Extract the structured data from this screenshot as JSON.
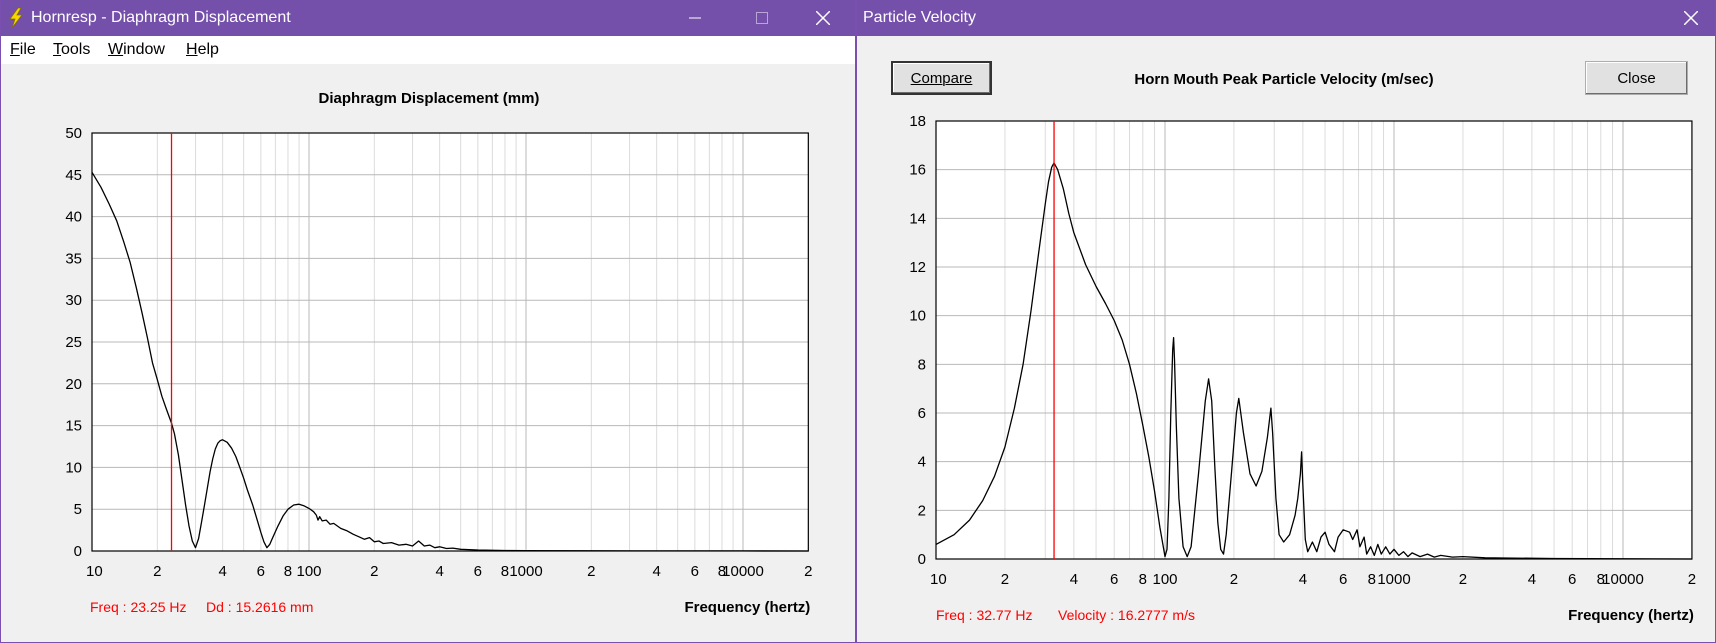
{
  "left_window": {
    "title": "Hornresp - Diaphragm Displacement",
    "menu": [
      {
        "label": "File",
        "mnemonic": "F",
        "rest": "ile"
      },
      {
        "label": "Tools",
        "mnemonic": "T",
        "rest": "ools"
      },
      {
        "label": "Window",
        "mnemonic": "W",
        "rest": "indow"
      },
      {
        "label": "Help",
        "mnemonic": "H",
        "rest": "elp"
      }
    ],
    "status": {
      "freq": "Freq : 23.25 Hz",
      "value": "Dd : 15.2616 mm"
    }
  },
  "right_window": {
    "title": "Particle Velocity",
    "compare_label": "Compare",
    "close_label": "Close",
    "status": {
      "freq": "Freq : 32.77 Hz",
      "value": "Velocity : 16.2777 m/s"
    }
  },
  "chart_data": [
    {
      "type": "line",
      "title": "Diaphragm Displacement (mm)",
      "xlabel": "Frequency (hertz)",
      "ylabel": "",
      "xscale": "log",
      "xlim": [
        10,
        20000
      ],
      "ylim": [
        0,
        50
      ],
      "yticks": [
        0,
        5,
        10,
        15,
        20,
        25,
        30,
        35,
        40,
        45,
        50
      ],
      "xtick_labels": [
        {
          "v": 10,
          "t": "10"
        },
        {
          "v": 20,
          "t": "2"
        },
        {
          "v": 40,
          "t": "4"
        },
        {
          "v": 60,
          "t": "6"
        },
        {
          "v": 80,
          "t": "8"
        },
        {
          "v": 100,
          "t": "100"
        },
        {
          "v": 200,
          "t": "2"
        },
        {
          "v": 400,
          "t": "4"
        },
        {
          "v": 600,
          "t": "6"
        },
        {
          "v": 800,
          "t": "8"
        },
        {
          "v": 1000,
          "t": "1000"
        },
        {
          "v": 2000,
          "t": "2"
        },
        {
          "v": 4000,
          "t": "4"
        },
        {
          "v": 6000,
          "t": "6"
        },
        {
          "v": 8000,
          "t": "8"
        },
        {
          "v": 10000,
          "t": "10000"
        },
        {
          "v": 20000,
          "t": "2"
        }
      ],
      "grid": true,
      "cursor_x": 23.25,
      "series": [
        {
          "name": "",
          "color": "#000000",
          "points": [
            [
              10,
              45.3
            ],
            [
              11,
              43.5
            ],
            [
              12,
              41.5
            ],
            [
              13,
              39.5
            ],
            [
              14,
              37
            ],
            [
              15,
              34.5
            ],
            [
              16,
              31.5
            ],
            [
              17,
              28.5
            ],
            [
              18,
              25.5
            ],
            [
              19,
              22.5
            ],
            [
              20,
              20.5
            ],
            [
              21,
              18.5
            ],
            [
              22,
              17
            ],
            [
              23.25,
              15.3
            ],
            [
              24,
              14
            ],
            [
              25,
              11.5
            ],
            [
              26,
              8.5
            ],
            [
              27,
              5.5
            ],
            [
              28,
              3
            ],
            [
              29,
              1.2
            ],
            [
              30,
              0.4
            ],
            [
              31,
              1.5
            ],
            [
              32,
              3.5
            ],
            [
              33,
              5.5
            ],
            [
              34,
              7.5
            ],
            [
              35,
              9.5
            ],
            [
              36,
              11
            ],
            [
              37,
              12.2
            ],
            [
              38,
              12.9
            ],
            [
              39,
              13.2
            ],
            [
              40,
              13.3
            ],
            [
              42,
              13.0
            ],
            [
              44,
              12.3
            ],
            [
              46,
              11.3
            ],
            [
              48,
              10
            ],
            [
              50,
              8.7
            ],
            [
              52,
              7.3
            ],
            [
              55,
              5.5
            ],
            [
              58,
              3.5
            ],
            [
              60,
              2.2
            ],
            [
              62,
              1.1
            ],
            [
              64,
              0.4
            ],
            [
              66,
              0.8
            ],
            [
              68,
              1.6
            ],
            [
              72,
              3
            ],
            [
              76,
              4.2
            ],
            [
              80,
              5.0
            ],
            [
              85,
              5.5
            ],
            [
              90,
              5.6
            ],
            [
              95,
              5.4
            ],
            [
              100,
              5.1
            ],
            [
              105,
              4.7
            ],
            [
              108,
              4.3
            ],
            [
              110,
              3.7
            ],
            [
              112,
              4.1
            ],
            [
              115,
              3.6
            ],
            [
              120,
              3.7
            ],
            [
              125,
              3.2
            ],
            [
              130,
              3.3
            ],
            [
              140,
              2.7
            ],
            [
              150,
              2.4
            ],
            [
              160,
              2.0
            ],
            [
              170,
              1.7
            ],
            [
              180,
              1.4
            ],
            [
              190,
              1.6
            ],
            [
              200,
              1.1
            ],
            [
              210,
              1.2
            ],
            [
              220,
              0.9
            ],
            [
              240,
              1.0
            ],
            [
              260,
              0.7
            ],
            [
              280,
              0.8
            ],
            [
              300,
              0.6
            ],
            [
              320,
              1.2
            ],
            [
              340,
              0.6
            ],
            [
              360,
              0.7
            ],
            [
              380,
              0.4
            ],
            [
              400,
              0.5
            ],
            [
              430,
              0.3
            ],
            [
              460,
              0.35
            ],
            [
              500,
              0.2
            ],
            [
              600,
              0.12
            ],
            [
              800,
              0.06
            ],
            [
              1000,
              0.04
            ],
            [
              2000,
              0.02
            ],
            [
              5000,
              0.01
            ],
            [
              10000,
              0.01
            ],
            [
              20000,
              0.0
            ]
          ]
        }
      ]
    },
    {
      "type": "line",
      "title": "Horn Mouth Peak Particle Velocity (m/sec)",
      "xlabel": "Frequency (hertz)",
      "ylabel": "",
      "xscale": "log",
      "xlim": [
        10,
        20000
      ],
      "ylim": [
        0,
        18
      ],
      "yticks": [
        0,
        2,
        4,
        6,
        8,
        10,
        12,
        14,
        16,
        18
      ],
      "xtick_labels": [
        {
          "v": 10,
          "t": "10"
        },
        {
          "v": 20,
          "t": "2"
        },
        {
          "v": 40,
          "t": "4"
        },
        {
          "v": 60,
          "t": "6"
        },
        {
          "v": 80,
          "t": "8"
        },
        {
          "v": 100,
          "t": "100"
        },
        {
          "v": 200,
          "t": "2"
        },
        {
          "v": 400,
          "t": "4"
        },
        {
          "v": 600,
          "t": "6"
        },
        {
          "v": 800,
          "t": "8"
        },
        {
          "v": 1000,
          "t": "1000"
        },
        {
          "v": 2000,
          "t": "2"
        },
        {
          "v": 4000,
          "t": "4"
        },
        {
          "v": 6000,
          "t": "6"
        },
        {
          "v": 8000,
          "t": "8"
        },
        {
          "v": 10000,
          "t": "10000"
        },
        {
          "v": 20000,
          "t": "2"
        }
      ],
      "grid": true,
      "cursor_x": 32.77,
      "series": [
        {
          "name": "",
          "color": "#000000",
          "points": [
            [
              10,
              0.6
            ],
            [
              12,
              1.0
            ],
            [
              14,
              1.6
            ],
            [
              16,
              2.4
            ],
            [
              18,
              3.4
            ],
            [
              20,
              4.6
            ],
            [
              22,
              6.2
            ],
            [
              24,
              8.0
            ],
            [
              26,
              10.2
            ],
            [
              28,
              12.5
            ],
            [
              30,
              14.6
            ],
            [
              31,
              15.5
            ],
            [
              32,
              16.1
            ],
            [
              32.77,
              16.28
            ],
            [
              34,
              16.0
            ],
            [
              36,
              15.2
            ],
            [
              38,
              14.2
            ],
            [
              40,
              13.4
            ],
            [
              45,
              12.1
            ],
            [
              50,
              11.2
            ],
            [
              55,
              10.5
            ],
            [
              60,
              9.8
            ],
            [
              65,
              9.0
            ],
            [
              70,
              8.0
            ],
            [
              75,
              6.8
            ],
            [
              80,
              5.5
            ],
            [
              85,
              4.2
            ],
            [
              90,
              2.8
            ],
            [
              95,
              1.3
            ],
            [
              100,
              0.1
            ],
            [
              102,
              0.4
            ],
            [
              104,
              2.5
            ],
            [
              106,
              6.0
            ],
            [
              108,
              8.6
            ],
            [
              109,
              9.1
            ],
            [
              110,
              8.2
            ],
            [
              112,
              5.5
            ],
            [
              115,
              2.5
            ],
            [
              120,
              0.5
            ],
            [
              125,
              0.1
            ],
            [
              130,
              0.5
            ],
            [
              140,
              3.5
            ],
            [
              150,
              6.5
            ],
            [
              155,
              7.4
            ],
            [
              160,
              6.5
            ],
            [
              165,
              3.8
            ],
            [
              170,
              1.5
            ],
            [
              175,
              0.4
            ],
            [
              180,
              0.2
            ],
            [
              185,
              1.0
            ],
            [
              195,
              3.5
            ],
            [
              205,
              6.0
            ],
            [
              210,
              6.6
            ],
            [
              220,
              5.2
            ],
            [
              235,
              3.5
            ],
            [
              250,
              3.0
            ],
            [
              265,
              3.6
            ],
            [
              280,
              5.0
            ],
            [
              290,
              6.2
            ],
            [
              295,
              5.2
            ],
            [
              305,
              2.5
            ],
            [
              315,
              1.0
            ],
            [
              330,
              0.7
            ],
            [
              350,
              1.0
            ],
            [
              370,
              1.8
            ],
            [
              380,
              2.5
            ],
            [
              390,
              3.5
            ],
            [
              395,
              4.4
            ],
            [
              400,
              3.0
            ],
            [
              410,
              0.8
            ],
            [
              420,
              0.3
            ],
            [
              440,
              0.7
            ],
            [
              460,
              0.3
            ],
            [
              480,
              0.9
            ],
            [
              500,
              1.1
            ],
            [
              520,
              0.6
            ],
            [
              550,
              0.3
            ],
            [
              570,
              0.9
            ],
            [
              600,
              1.2
            ],
            [
              640,
              1.1
            ],
            [
              660,
              0.8
            ],
            [
              690,
              1.2
            ],
            [
              710,
              0.5
            ],
            [
              740,
              0.9
            ],
            [
              760,
              0.2
            ],
            [
              790,
              0.5
            ],
            [
              820,
              0.15
            ],
            [
              850,
              0.6
            ],
            [
              880,
              0.2
            ],
            [
              920,
              0.5
            ],
            [
              960,
              0.2
            ],
            [
              1000,
              0.4
            ],
            [
              1050,
              0.15
            ],
            [
              1100,
              0.3
            ],
            [
              1150,
              0.1
            ],
            [
              1200,
              0.25
            ],
            [
              1300,
              0.1
            ],
            [
              1400,
              0.2
            ],
            [
              1500,
              0.08
            ],
            [
              1600,
              0.15
            ],
            [
              1800,
              0.08
            ],
            [
              2000,
              0.1
            ],
            [
              2500,
              0.05
            ],
            [
              3000,
              0.04
            ],
            [
              5000,
              0.02
            ],
            [
              10000,
              0.01
            ],
            [
              20000,
              0.0
            ]
          ]
        }
      ]
    }
  ]
}
